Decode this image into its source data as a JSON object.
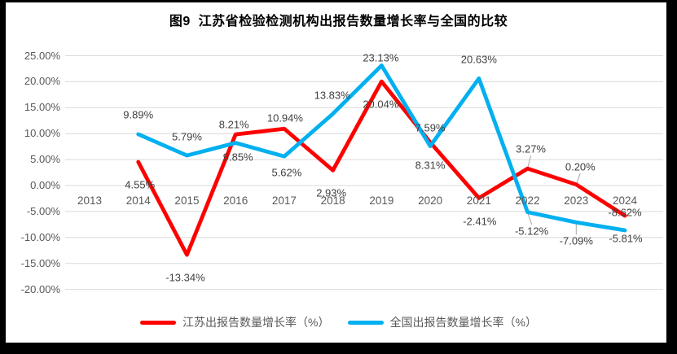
{
  "frame": {
    "border_color": "#000000",
    "background": "#FFFFFF"
  },
  "chart_data": {
    "type": "line",
    "title": "图9  江苏省检验检测机构出报告数量增长率与全国的比较",
    "categories": [
      "2013",
      "2014",
      "2015",
      "2016",
      "2017",
      "2018",
      "2019",
      "2020",
      "2021",
      "2022",
      "2023",
      "2024"
    ],
    "xlabel": "",
    "ylabel": "",
    "ylim": [
      -20,
      25
    ],
    "grid": true,
    "legend_position": "bottom",
    "y_axis_ticks": [
      "25.00%",
      "20.00%",
      "15.00%",
      "10.00%",
      "5.00%",
      "0.00%",
      "-5.00%",
      "-10.00%",
      "-15.00%",
      "-20.00%"
    ],
    "series": [
      {
        "id": "jiangsu",
        "name": "江苏出报告数量增长率（%）",
        "color": "#FE0000",
        "values": [
          null,
          4.55,
          -13.34,
          9.85,
          10.94,
          2.93,
          20.04,
          8.31,
          -2.41,
          3.27,
          0.2,
          -5.81
        ],
        "labels": [
          null,
          "4.55%",
          "-13.34%",
          "9.85%",
          "10.94%",
          "2.93%",
          "20.04%",
          "8.31%",
          "-2.41%",
          "3.27%",
          "0.20%",
          "-5.81%"
        ]
      },
      {
        "id": "national",
        "name": "全国出报告数量增长率（%）",
        "color": "#00B0F0",
        "values": [
          null,
          9.89,
          5.79,
          8.21,
          5.62,
          13.83,
          23.13,
          7.59,
          20.63,
          -5.12,
          -7.09,
          -8.62
        ],
        "labels": [
          null,
          "9.89%",
          "5.79%",
          "8.21%",
          "5.62%",
          "13.83%",
          "23.13%",
          "7.59%",
          "20.63%",
          "-5.12%",
          "-7.09%",
          "-8.62%"
        ]
      }
    ]
  },
  "legend": {
    "items": [
      {
        "label": "江苏出报告数量增长率（%）",
        "color": "#FE0000"
      },
      {
        "label": "全国出报告数量增长率（%）",
        "color": "#00B0F0"
      }
    ]
  }
}
